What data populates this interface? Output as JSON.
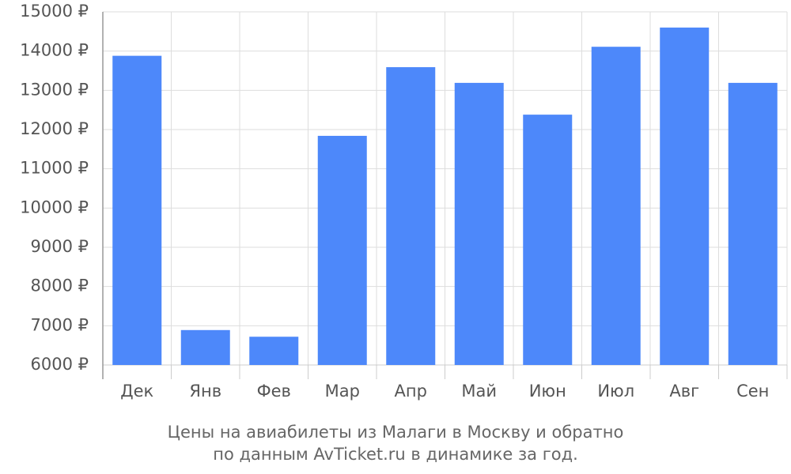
{
  "chart_data": {
    "type": "bar",
    "title": "Цены на авиабилеты из Малаги в Москву и обратно",
    "subtitle": "по данным AvTicket.ru в динамике за год.",
    "categories": [
      "Дек",
      "Янв",
      "Фев",
      "Мар",
      "Апр",
      "Май",
      "Июн",
      "Июл",
      "Авг",
      "Сен"
    ],
    "values": [
      13880,
      6890,
      6720,
      11840,
      13590,
      13190,
      12380,
      14110,
      14600,
      13190
    ],
    "color": "#4d88fa",
    "ylim": [
      6000,
      15000
    ],
    "yticks": [
      {
        "value": 6000,
        "label": "6000 ₽"
      },
      {
        "value": 7000,
        "label": "7000 ₽"
      },
      {
        "value": 8000,
        "label": "8000 ₽"
      },
      {
        "value": 9000,
        "label": "9000 ₽"
      },
      {
        "value": 10000,
        "label": "10000 ₽"
      },
      {
        "value": 11000,
        "label": "11000 ₽"
      },
      {
        "value": 12000,
        "label": "12000 ₽"
      },
      {
        "value": 13000,
        "label": "13000 ₽"
      },
      {
        "value": 14000,
        "label": "14000 ₽"
      },
      {
        "value": 15000,
        "label": "15000 ₽"
      }
    ],
    "grid": true
  }
}
